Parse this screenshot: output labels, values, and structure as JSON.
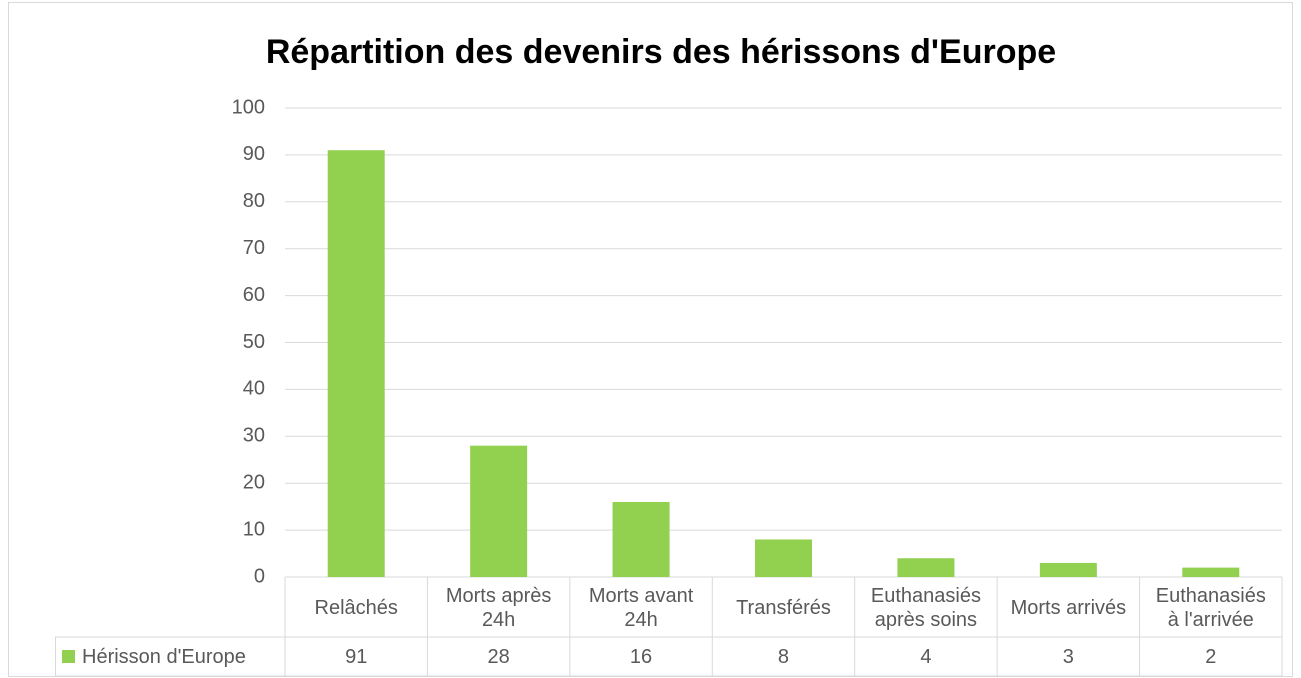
{
  "chart_data": {
    "type": "bar",
    "title": "Répartition des devenirs des hérissons d'Europe",
    "categories": [
      "Relâchés",
      "Morts après 24h",
      "Morts avant 24h",
      "Transférés",
      "Euthanasiés après soins",
      "Morts arrivés",
      "Euthanasiés à l'arrivée"
    ],
    "series": [
      {
        "name": "Hérisson d'Europe",
        "color": "#92d050",
        "values": [
          91,
          28,
          16,
          8,
          4,
          3,
          2
        ]
      }
    ],
    "ylim": [
      0,
      100
    ],
    "yticks": [
      0,
      10,
      20,
      30,
      40,
      50,
      60,
      70,
      80,
      90,
      100
    ],
    "grid": true
  }
}
